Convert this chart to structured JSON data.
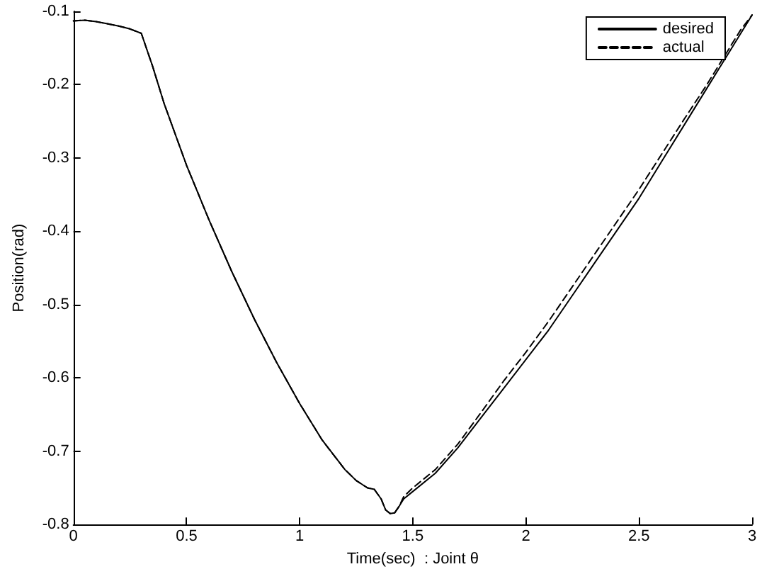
{
  "chart_data": {
    "type": "line",
    "xlabel": "Time(sec)  : Joint θ",
    "ylabel": "Position(rad)",
    "xlim": [
      0,
      3
    ],
    "xticks": [
      0,
      0.5,
      1,
      1.5,
      2,
      2.5,
      3
    ],
    "ylim": [
      -0.8,
      -0.1
    ],
    "yticks": [
      -0.8,
      -0.7,
      -0.6,
      -0.5,
      -0.4,
      -0.3,
      -0.2,
      -0.1
    ],
    "grid": false,
    "legend": "top right",
    "marker": "none",
    "series": [
      {
        "name": "desired",
        "color": "#000000",
        "line_style": "solid",
        "x": [
          0,
          0.05,
          0.1,
          0.15,
          0.2,
          0.25,
          0.3,
          0.35,
          0.4,
          0.5,
          0.6,
          0.7,
          0.8,
          0.9,
          1.0,
          1.1,
          1.2,
          1.25,
          1.3,
          1.33,
          1.36,
          1.38,
          1.4,
          1.42,
          1.44,
          1.46,
          1.5,
          1.6,
          1.7,
          1.8,
          1.9,
          2.0,
          2.1,
          2.2,
          2.3,
          2.4,
          2.5,
          2.6,
          2.7,
          2.8,
          2.9,
          2.95,
          3.0
        ],
        "values": [
          -0.113,
          -0.112,
          -0.114,
          -0.117,
          -0.12,
          -0.124,
          -0.13,
          -0.175,
          -0.225,
          -0.31,
          -0.385,
          -0.455,
          -0.52,
          -0.58,
          -0.635,
          -0.685,
          -0.725,
          -0.74,
          -0.75,
          -0.752,
          -0.765,
          -0.78,
          -0.785,
          -0.784,
          -0.775,
          -0.765,
          -0.755,
          -0.73,
          -0.695,
          -0.655,
          -0.615,
          -0.575,
          -0.535,
          -0.49,
          -0.445,
          -0.4,
          -0.355,
          -0.305,
          -0.255,
          -0.205,
          -0.155,
          -0.13,
          -0.105
        ]
      },
      {
        "name": "actual",
        "color": "#000000",
        "line_style": "dashed",
        "x": [
          0,
          0.05,
          0.1,
          0.15,
          0.2,
          0.25,
          0.3,
          0.35,
          0.4,
          0.5,
          0.6,
          0.7,
          0.8,
          0.9,
          1.0,
          1.1,
          1.2,
          1.25,
          1.3,
          1.33,
          1.36,
          1.38,
          1.4,
          1.42,
          1.44,
          1.46,
          1.5,
          1.6,
          1.7,
          1.8,
          1.9,
          2.0,
          2.1,
          2.2,
          2.3,
          2.4,
          2.5,
          2.6,
          2.7,
          2.8,
          2.9,
          2.95,
          3.0
        ],
        "values": [
          -0.113,
          -0.112,
          -0.114,
          -0.117,
          -0.12,
          -0.124,
          -0.13,
          -0.175,
          -0.225,
          -0.31,
          -0.385,
          -0.455,
          -0.52,
          -0.58,
          -0.635,
          -0.685,
          -0.725,
          -0.74,
          -0.75,
          -0.752,
          -0.765,
          -0.78,
          -0.785,
          -0.784,
          -0.775,
          -0.762,
          -0.75,
          -0.725,
          -0.69,
          -0.648,
          -0.605,
          -0.565,
          -0.523,
          -0.478,
          -0.433,
          -0.388,
          -0.343,
          -0.295,
          -0.247,
          -0.2,
          -0.15,
          -0.125,
          -0.105
        ]
      }
    ]
  }
}
